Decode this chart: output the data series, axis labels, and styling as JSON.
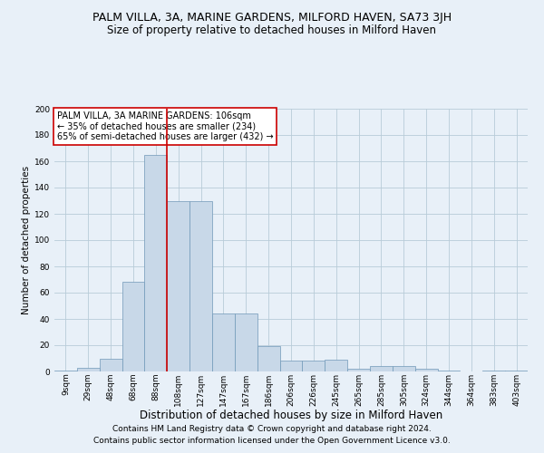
{
  "title": "PALM VILLA, 3A, MARINE GARDENS, MILFORD HAVEN, SA73 3JH",
  "subtitle": "Size of property relative to detached houses in Milford Haven",
  "xlabel": "Distribution of detached houses by size in Milford Haven",
  "ylabel": "Number of detached properties",
  "footnote1": "Contains HM Land Registry data © Crown copyright and database right 2024.",
  "footnote2": "Contains public sector information licensed under the Open Government Licence v3.0.",
  "categories": [
    "9sqm",
    "29sqm",
    "48sqm",
    "68sqm",
    "88sqm",
    "108sqm",
    "127sqm",
    "147sqm",
    "167sqm",
    "186sqm",
    "206sqm",
    "226sqm",
    "245sqm",
    "265sqm",
    "285sqm",
    "305sqm",
    "324sqm",
    "344sqm",
    "364sqm",
    "383sqm",
    "403sqm"
  ],
  "values": [
    1,
    3,
    10,
    68,
    165,
    130,
    130,
    44,
    44,
    19,
    8,
    8,
    9,
    2,
    4,
    4,
    2,
    1,
    0,
    1,
    1
  ],
  "bar_color": "#c8d8e8",
  "bar_edge_color": "#7098b8",
  "vline_x": 4.5,
  "vline_color": "#cc0000",
  "annotation_text": "PALM VILLA, 3A MARINE GARDENS: 106sqm\n← 35% of detached houses are smaller (234)\n65% of semi-detached houses are larger (432) →",
  "annotation_box_color": "white",
  "annotation_box_edge_color": "#cc0000",
  "ylim": [
    0,
    200
  ],
  "yticks": [
    0,
    20,
    40,
    60,
    80,
    100,
    120,
    140,
    160,
    180,
    200
  ],
  "grid_color": "#b8ccd8",
  "background_color": "#e8f0f8",
  "title_fontsize": 9,
  "subtitle_fontsize": 8.5,
  "xlabel_fontsize": 8.5,
  "ylabel_fontsize": 7.5,
  "tick_fontsize": 6.5,
  "annotation_fontsize": 7,
  "footnote_fontsize": 6.5
}
